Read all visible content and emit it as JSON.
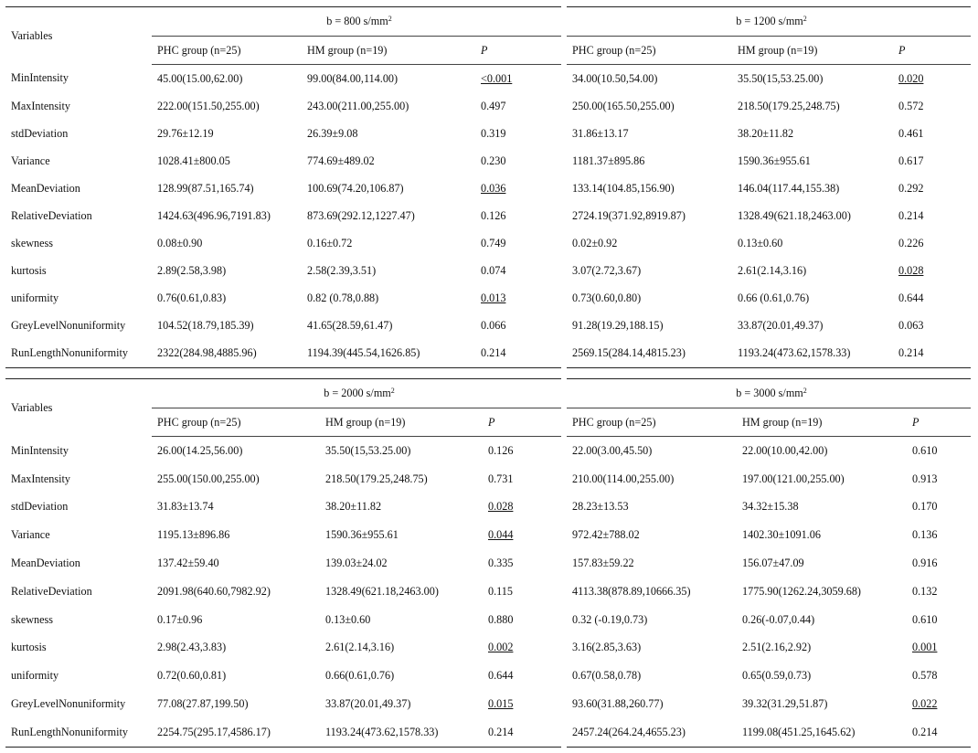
{
  "tables": [
    {
      "variables_label": "Variables",
      "left_b": "b = 800 s/mm",
      "right_b": "b = 1200 s/mm",
      "b_exponent": "2",
      "col_phc": "PHC group (n=25)",
      "col_hm": "HM group (n=19)",
      "col_p": "P",
      "rows": [
        {
          "var": "MinIntensity",
          "l_phc": "45.00(15.00,62.00)",
          "l_hm": "99.00(84.00,114.00)",
          "l_p": "<0.001",
          "r_phc": "34.00(10.50,54.00)",
          "r_hm": "35.50(15,53.25.00)",
          "r_p": "0.020"
        },
        {
          "var": "MaxIntensity",
          "l_phc": "222.00(151.50,255.00)",
          "l_hm": "243.00(211.00,255.00)",
          "l_p": "0.497",
          "r_phc": "250.00(165.50,255.00)",
          "r_hm": "218.50(179.25,248.75)",
          "r_p": "0.572"
        },
        {
          "var": "stdDeviation",
          "l_phc": "29.76±12.19",
          "l_hm": "26.39±9.08",
          "l_p": "0.319",
          "r_phc": "31.86±13.17",
          "r_hm": "38.20±11.82",
          "r_p": "0.461"
        },
        {
          "var": "Variance",
          "l_phc": "1028.41±800.05",
          "l_hm": "774.69±489.02",
          "l_p": "0.230",
          "r_phc": "1181.37±895.86",
          "r_hm": "1590.36±955.61",
          "r_p": "0.617"
        },
        {
          "var": "MeanDeviation",
          "l_phc": "128.99(87.51,165.74)",
          "l_hm": "100.69(74.20,106.87)",
          "l_p": "0.036",
          "r_phc": "133.14(104.85,156.90)",
          "r_hm": "146.04(117.44,155.38)",
          "r_p": "0.292"
        },
        {
          "var": "RelativeDeviation",
          "l_phc": "1424.63(496.96,7191.83)",
          "l_hm": "873.69(292.12,1227.47)",
          "l_p": "0.126",
          "r_phc": "2724.19(371.92,8919.87)",
          "r_hm": "1328.49(621.18,2463.00)",
          "r_p": "0.214"
        },
        {
          "var": "skewness",
          "l_phc": "0.08±0.90",
          "l_hm": "0.16±0.72",
          "l_p": "0.749",
          "r_phc": "0.02±0.92",
          "r_hm": "0.13±0.60",
          "r_p": "0.226"
        },
        {
          "var": "kurtosis",
          "l_phc": "2.89(2.58,3.98)",
          "l_hm": "2.58(2.39,3.51)",
          "l_p": "0.074",
          "r_phc": "3.07(2.72,3.67)",
          "r_hm": "2.61(2.14,3.16)",
          "r_p": "0.028"
        },
        {
          "var": "uniformity",
          "l_phc": "0.76(0.61,0.83)",
          "l_hm": "0.82 (0.78,0.88)",
          "l_p": "0.013",
          "r_phc": "0.73(0.60,0.80)",
          "r_hm": "0.66 (0.61,0.76)",
          "r_p": "0.644"
        },
        {
          "var": "GreyLevelNonuniformity",
          "l_phc": "104.52(18.79,185.39)",
          "l_hm": "41.65(28.59,61.47)",
          "l_p": "0.066",
          "r_phc": "91.28(19.29,188.15)",
          "r_hm": "33.87(20.01,49.37)",
          "r_p": "0.063"
        },
        {
          "var": "RunLengthNonuniformity",
          "l_phc": "2322(284.98,4885.96)",
          "l_hm": "1194.39(445.54,1626.85)",
          "l_p": "0.214",
          "r_phc": "2569.15(284.14,4815.23)",
          "r_hm": "1193.24(473.62,1578.33)",
          "r_p": "0.214"
        }
      ]
    },
    {
      "variables_label": "Variables",
      "left_b": "b = 2000 s/mm",
      "right_b": "b = 3000 s/mm",
      "b_exponent": "2",
      "col_phc": "PHC group (n=25)",
      "col_hm": "HM group (n=19)",
      "col_p": "P",
      "rows": [
        {
          "var": "MinIntensity",
          "l_phc": "26.00(14.25,56.00)",
          "l_hm": "35.50(15,53.25.00)",
          "l_p": "0.126",
          "r_phc": "22.00(3.00,45.50)",
          "r_hm": "22.00(10.00,42.00)",
          "r_p": "0.610"
        },
        {
          "var": "MaxIntensity",
          "l_phc": "255.00(150.00,255.00)",
          "l_hm": "218.50(179.25,248.75)",
          "l_p": "0.731",
          "r_phc": "210.00(114.00,255.00)",
          "r_hm": "197.00(121.00,255.00)",
          "r_p": "0.913"
        },
        {
          "var": "stdDeviation",
          "l_phc": "31.83±13.74",
          "l_hm": "38.20±11.82",
          "l_p": "0.028",
          "r_phc": "28.23±13.53",
          "r_hm": "34.32±15.38",
          "r_p": "0.170"
        },
        {
          "var": "Variance",
          "l_phc": "1195.13±896.86",
          "l_hm": "1590.36±955.61",
          "l_p": "0.044",
          "r_phc": "972.42±788.02",
          "r_hm": "1402.30±1091.06",
          "r_p": "0.136"
        },
        {
          "var": "MeanDeviation",
          "l_phc": "137.42±59.40",
          "l_hm": "139.03±24.02",
          "l_p": "0.335",
          "r_phc": "157.83±59.22",
          "r_hm": "156.07±47.09",
          "r_p": "0.916"
        },
        {
          "var": "RelativeDeviation",
          "l_phc": "2091.98(640.60,7982.92)",
          "l_hm": "1328.49(621.18,2463.00)",
          "l_p": "0.115",
          "r_phc": "4113.38(878.89,10666.35)",
          "r_hm": "1775.90(1262.24,3059.68)",
          "r_p": "0.132"
        },
        {
          "var": "skewness",
          "l_phc": "0.17±0.96",
          "l_hm": "0.13±0.60",
          "l_p": "0.880",
          "r_phc": "0.32 (-0.19,0.73)",
          "r_hm": "0.26(-0.07,0.44)",
          "r_p": "0.610"
        },
        {
          "var": "kurtosis",
          "l_phc": "2.98(2.43,3.83)",
          "l_hm": "2.61(2.14,3.16)",
          "l_p": "0.002",
          "r_phc": "3.16(2.85,3.63)",
          "r_hm": "2.51(2.16,2.92)",
          "r_p": "0.001"
        },
        {
          "var": "uniformity",
          "l_phc": "0.72(0.60,0.81)",
          "l_hm": "0.66(0.61,0.76)",
          "l_p": "0.644",
          "r_phc": "0.67(0.58,0.78)",
          "r_hm": "0.65(0.59,0.73)",
          "r_p": "0.578"
        },
        {
          "var": "GreyLevelNonuniformity",
          "l_phc": "77.08(27.87,199.50)",
          "l_hm": "33.87(20.01,49.37)",
          "l_p": "0.015",
          "r_phc": "93.60(31.88,260.77)",
          "r_hm": "39.32(31.29,51.87)",
          "r_p": "0.022"
        },
        {
          "var": "RunLengthNonuniformity",
          "l_phc": "2254.75(295.17,4586.17)",
          "l_hm": "1193.24(473.62,1578.33)",
          "l_p": "0.214",
          "r_phc": "2457.24(264.24,4655.23)",
          "r_hm": "1199.08(451.25,1645.62)",
          "r_p": "0.214"
        }
      ]
    }
  ]
}
